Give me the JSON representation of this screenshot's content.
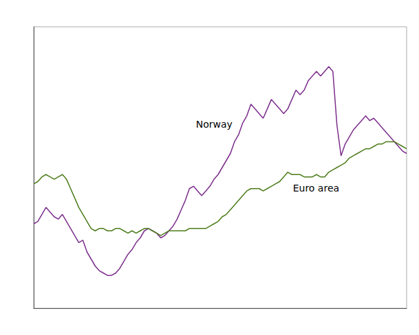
{
  "chart_data": {
    "type": "line",
    "series": [
      {
        "color": "#7B2D8B",
        "values": [
          93.0,
          93.5,
          95.0,
          96.5,
          95.5,
          94.5,
          94.0,
          95.0,
          93.5,
          92.0,
          90.5,
          89.0,
          89.5,
          87.0,
          85.5,
          84.0,
          83.0,
          82.5,
          82.0,
          82.0,
          82.5,
          83.5,
          85.0,
          86.5,
          87.5,
          89.0,
          90.0,
          91.5,
          92.0,
          91.5,
          91.0,
          90.0,
          90.5,
          91.5,
          92.5,
          94.0,
          96.0,
          98.0,
          100.5,
          101.0,
          100.0,
          99.0,
          100.0,
          101.0,
          102.5,
          103.5,
          105.0,
          106.5,
          108.0,
          110.5,
          112.0,
          114.5,
          116.0,
          118.5,
          117.5,
          116.5,
          115.5,
          117.5,
          119.5,
          118.5,
          117.5,
          116.5,
          117.5,
          119.5,
          121.5,
          120.5,
          121.5,
          123.5,
          124.5,
          125.5,
          124.5,
          125.5,
          126.5,
          125.5,
          114.0,
          107.5,
          110.0,
          111.5,
          113.0,
          114.0,
          115.0,
          116.0,
          115.0,
          115.5,
          114.5,
          113.5,
          112.5,
          111.5,
          110.5,
          109.5,
          108.5,
          108.0
        ]
      },
      {
        "color": "#4B7B19",
        "values": [
          101.5,
          102.0,
          103.0,
          103.5,
          103.0,
          102.5,
          103.0,
          103.5,
          102.5,
          100.5,
          98.5,
          96.5,
          95.0,
          93.5,
          92.0,
          91.5,
          92.0,
          92.0,
          91.5,
          91.5,
          92.0,
          92.0,
          91.5,
          91.0,
          91.5,
          91.0,
          91.5,
          92.0,
          92.0,
          91.5,
          91.0,
          90.5,
          91.0,
          91.5,
          91.5,
          91.5,
          91.5,
          91.5,
          92.0,
          92.0,
          92.0,
          92.0,
          92.0,
          92.5,
          93.0,
          93.5,
          94.5,
          95.0,
          96.0,
          97.0,
          98.0,
          99.0,
          100.0,
          100.5,
          100.5,
          100.5,
          100.0,
          100.5,
          101.0,
          101.5,
          102.0,
          103.0,
          104.0,
          103.5,
          103.5,
          103.5,
          103.0,
          103.0,
          103.0,
          103.5,
          103.0,
          103.0,
          104.0,
          104.5,
          105.0,
          105.5,
          106.0,
          107.0,
          107.5,
          108.0,
          108.5,
          109.0,
          109.0,
          109.5,
          110.0,
          110.0,
          110.5,
          110.5,
          110.5,
          110.0,
          109.5,
          109.0
        ]
      }
    ],
    "annotations": [
      "Norway",
      "Euro area"
    ],
    "ylim": [
      75,
      135
    ],
    "yticks": [],
    "grid": false,
    "tick_labels": false
  }
}
